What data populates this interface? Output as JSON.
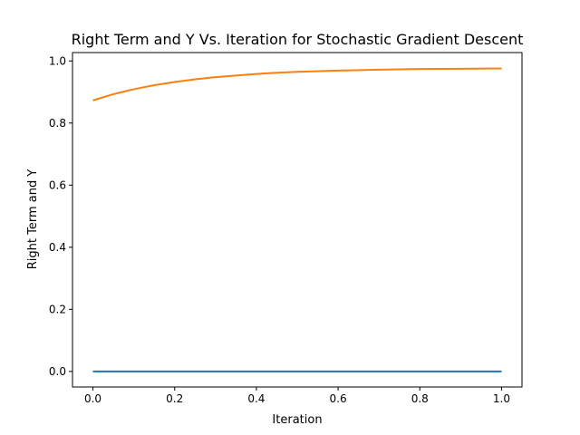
{
  "chart_data": {
    "type": "line",
    "title": "Right Term and Y Vs. Iteration for Stochastic Gradient Descent",
    "xlabel": "Iteration",
    "ylabel": "Right Term and Y",
    "xlim": [
      -0.05,
      1.05
    ],
    "ylim": [
      -0.05,
      1.027
    ],
    "x_ticks": [
      0.0,
      0.2,
      0.4,
      0.6,
      0.8,
      1.0
    ],
    "x_tick_labels": [
      "0.0",
      "0.2",
      "0.4",
      "0.6",
      "0.8",
      "1.0"
    ],
    "y_ticks": [
      0.0,
      0.2,
      0.4,
      0.6,
      0.8,
      1.0
    ],
    "y_tick_labels": [
      "0.0",
      "0.2",
      "0.4",
      "0.6",
      "0.8",
      "1.0"
    ],
    "grid": false,
    "legend": false,
    "series": [
      {
        "color": "#1f77b4",
        "x": [
          0.0,
          0.1,
          0.2,
          0.3,
          0.4,
          0.5,
          0.6,
          0.7,
          0.8,
          0.9,
          1.0
        ],
        "y": [
          0.0,
          0.0,
          0.0,
          0.0,
          0.0,
          0.0,
          0.0,
          0.0,
          0.0,
          0.0,
          0.0
        ]
      },
      {
        "color": "#ff7f0e",
        "x": [
          0.0,
          0.05,
          0.1,
          0.15,
          0.2,
          0.25,
          0.3,
          0.35,
          0.4,
          0.45,
          0.5,
          0.6,
          0.7,
          0.8,
          0.9,
          1.0
        ],
        "y": [
          0.873,
          0.893,
          0.909,
          0.922,
          0.932,
          0.941,
          0.948,
          0.953,
          0.958,
          0.962,
          0.965,
          0.969,
          0.972,
          0.974,
          0.975,
          0.976
        ]
      }
    ]
  }
}
